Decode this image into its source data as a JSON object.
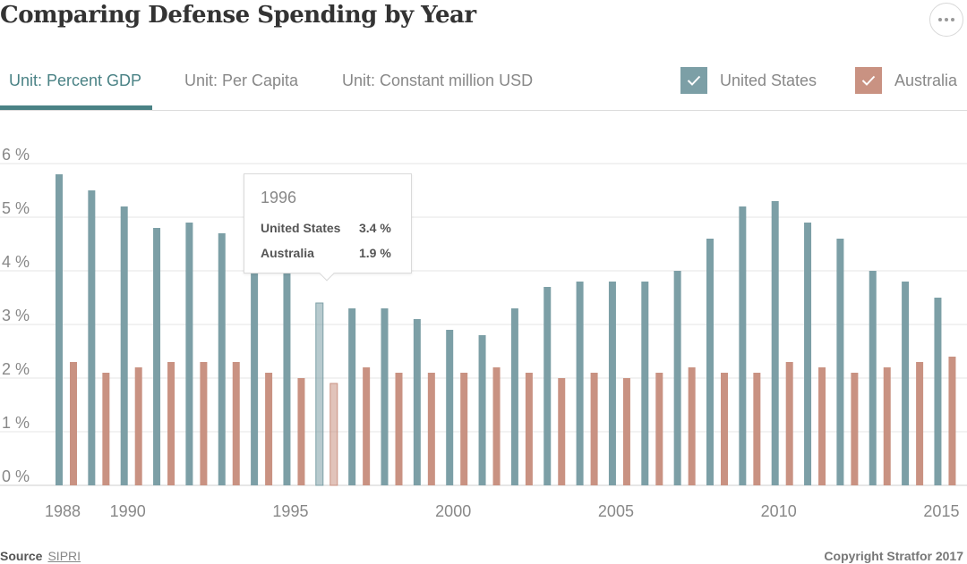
{
  "header": {
    "title": "Comparing Defense Spending by Year",
    "more_icon": "ellipsis-icon"
  },
  "tabs": [
    {
      "label": "Unit: Percent GDP",
      "active": true
    },
    {
      "label": "Unit: Per Capita",
      "active": false
    },
    {
      "label": "Unit: Constant million USD",
      "active": false
    }
  ],
  "legend": [
    {
      "label": "United States",
      "color": "#7c9fa6",
      "checked": true,
      "icon": "check-icon"
    },
    {
      "label": "Australia",
      "color": "#c99282",
      "checked": true,
      "icon": "check-icon"
    }
  ],
  "tooltip": {
    "year": "1996",
    "rows": [
      {
        "label": "United States",
        "value": "3.4 %"
      },
      {
        "label": "Australia",
        "value": "1.9 %"
      }
    ]
  },
  "footer": {
    "source_label": "Source",
    "source_link": "SIPRI",
    "copyright": "Copyright Stratfor 2017"
  },
  "chart_data": {
    "type": "bar",
    "categories": [
      1988,
      1989,
      1990,
      1991,
      1992,
      1993,
      1994,
      1995,
      1996,
      1997,
      1998,
      1999,
      2000,
      2001,
      2002,
      2003,
      2004,
      2005,
      2006,
      2007,
      2008,
      2009,
      2010,
      2011,
      2012,
      2013,
      2014,
      2015
    ],
    "series": [
      {
        "name": "United States",
        "color": "#7c9fa6",
        "values": [
          5.8,
          5.5,
          5.2,
          4.8,
          4.9,
          4.7,
          4.0,
          4.0,
          3.4,
          3.3,
          3.3,
          3.1,
          2.9,
          2.8,
          3.3,
          3.7,
          3.8,
          3.8,
          3.8,
          4.0,
          4.6,
          5.2,
          5.3,
          4.9,
          4.6,
          4.0,
          3.8,
          3.5
        ]
      },
      {
        "name": "Australia",
        "color": "#c99282",
        "values": [
          2.3,
          2.1,
          2.2,
          2.3,
          2.3,
          2.3,
          2.1,
          2.0,
          1.9,
          2.2,
          2.1,
          2.1,
          2.1,
          2.2,
          2.1,
          2.0,
          2.1,
          2.0,
          2.1,
          2.2,
          2.1,
          2.1,
          2.3,
          2.2,
          2.1,
          2.2,
          2.3,
          2.4
        ]
      }
    ],
    "ylim": [
      0,
      6
    ],
    "yticks": [
      "0 %",
      "1 %",
      "2 %",
      "3 %",
      "4 %",
      "5 %",
      "6 %"
    ],
    "xtick_labels": [
      "1988",
      "1990",
      "1995",
      "2000",
      "2005",
      "2010",
      "2015"
    ],
    "highlight": "1996",
    "grid": true
  }
}
